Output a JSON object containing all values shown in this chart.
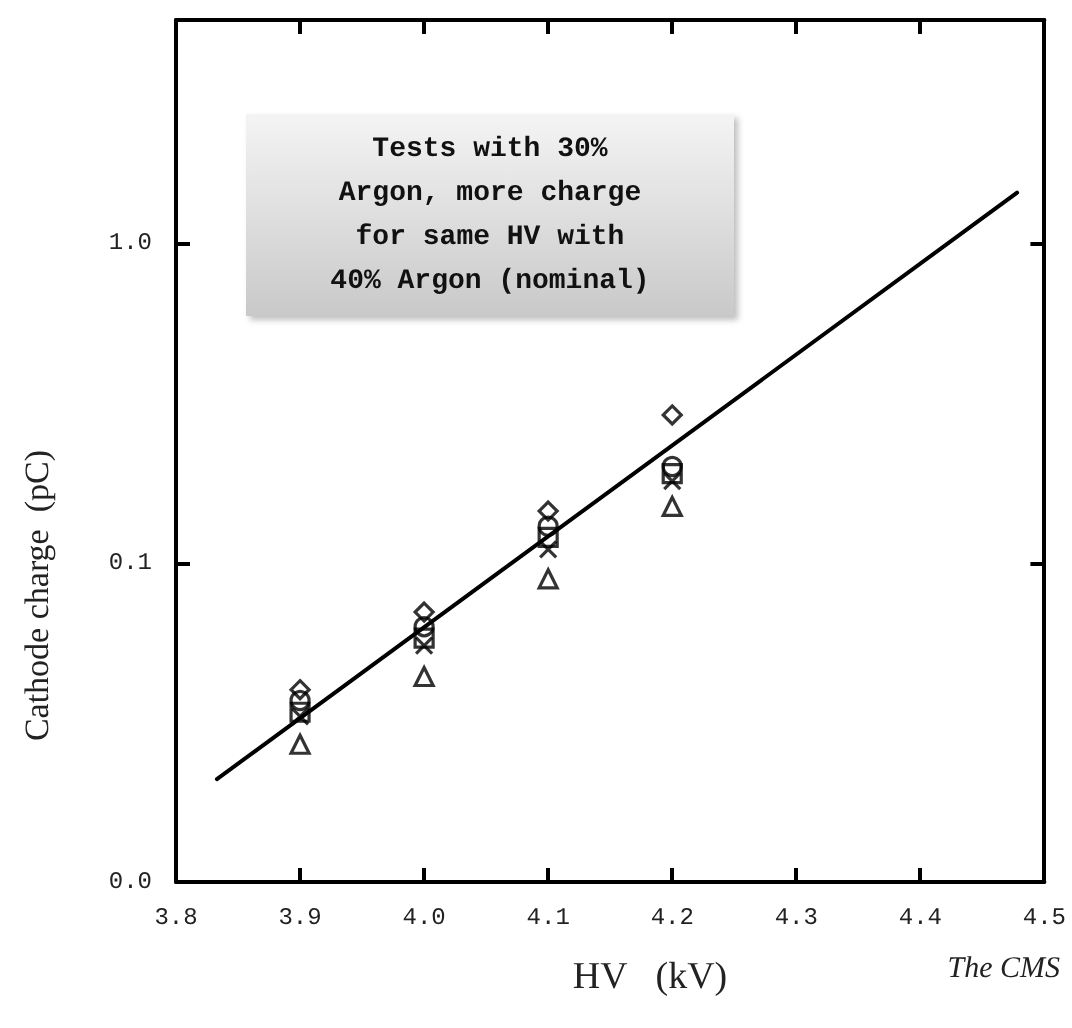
{
  "chart_data": {
    "type": "scatter",
    "xlabel": "HV   (kV)",
    "ylabel": "Cathode charge  (pC)",
    "annotations": [
      "Tests with 30%\nArgon, more charge\nfor same HV with\n40% Argon (nominal)",
      "The CMS"
    ],
    "x": [
      3.9,
      4.0,
      4.1,
      4.2
    ],
    "series": [
      {
        "color": "#000000",
        "marker": "diamond",
        "values": [
          0.04,
          0.07,
          0.145,
          0.29
        ]
      },
      {
        "color": "#000000",
        "marker": "circle",
        "values": [
          0.037,
          0.063,
          0.13,
          0.2
        ]
      },
      {
        "color": "#000000",
        "marker": "square",
        "values": [
          0.034,
          0.058,
          0.12,
          0.19
        ]
      },
      {
        "color": "#000000",
        "marker": "cross",
        "values": [
          0.033,
          0.055,
          0.11,
          0.18
        ]
      },
      {
        "color": "#000000",
        "marker": "triangle",
        "values": [
          0.027,
          0.044,
          0.089,
          0.15
        ]
      },
      {
        "type": "line",
        "color": "#000000",
        "marker": "none",
        "line_style": "solid",
        "x": [
          3.833,
          4.478
        ],
        "values": [
          0.021,
          1.44
        ]
      }
    ],
    "log": "y",
    "xlim": [
      3.8,
      4.5
    ],
    "xticks": [
      3.8,
      3.9,
      {
        "value": 4.0,
        "label": "4.0"
      },
      4.1,
      4.2,
      4.3,
      4.4,
      4.5
    ],
    "ylim": [
      0.01,
      5
    ],
    "yticks": [
      {
        "value": 0.01,
        "label": "0.0"
      },
      {
        "value": 0.1,
        "label": "0.1"
      },
      {
        "value": 1,
        "label": "1.0"
      }
    ],
    "grid": false
  }
}
